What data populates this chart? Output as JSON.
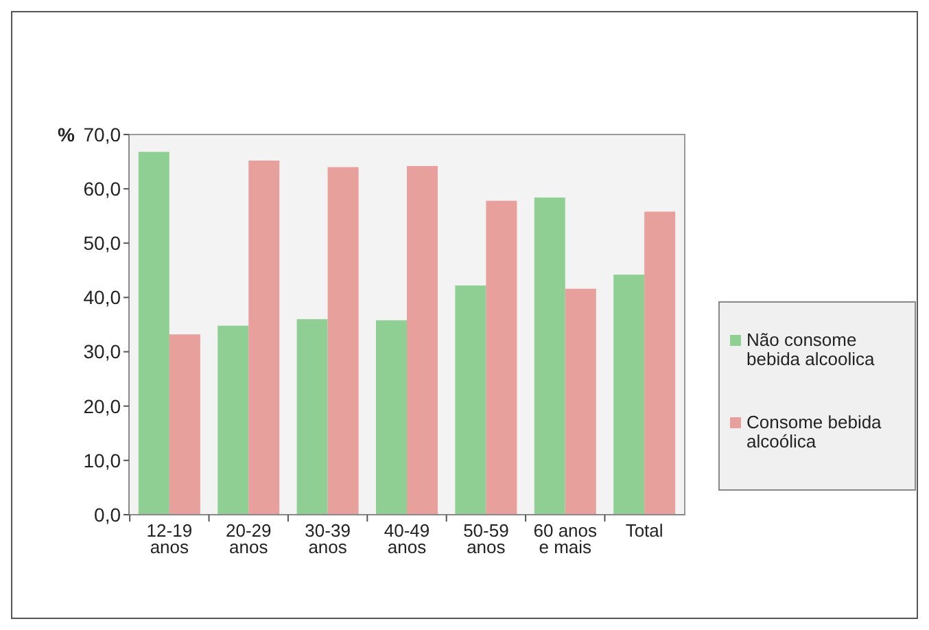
{
  "chart_data": {
    "type": "bar",
    "ylabel": "%",
    "categories": [
      "12-19 anos",
      "20-29 anos",
      "30-39 anos",
      "40-49 anos",
      "50-59 anos",
      "60 anos e mais",
      "Total"
    ],
    "series": [
      {
        "name": "Não consome bebida alcoolica",
        "color": "#8fcf93",
        "values": [
          66.8,
          34.8,
          36.0,
          35.8,
          42.2,
          58.4,
          44.2
        ]
      },
      {
        "name": "Consome bebida alcoólica",
        "color": "#e8a09c",
        "values": [
          33.2,
          65.2,
          64.0,
          64.2,
          57.8,
          41.6,
          55.8
        ]
      }
    ],
    "ylim": [
      0,
      70
    ],
    "yticks": [
      {
        "value": 0,
        "label": "0,0"
      },
      {
        "value": 10,
        "label": "10,0"
      },
      {
        "value": 20,
        "label": "20,0"
      },
      {
        "value": 30,
        "label": "30,0"
      },
      {
        "value": 40,
        "label": "40,0"
      },
      {
        "value": 50,
        "label": "50,0"
      },
      {
        "value": 60,
        "label": "60,0"
      },
      {
        "value": 70,
        "label": "70,0"
      }
    ],
    "grid": false,
    "legend": "right"
  }
}
